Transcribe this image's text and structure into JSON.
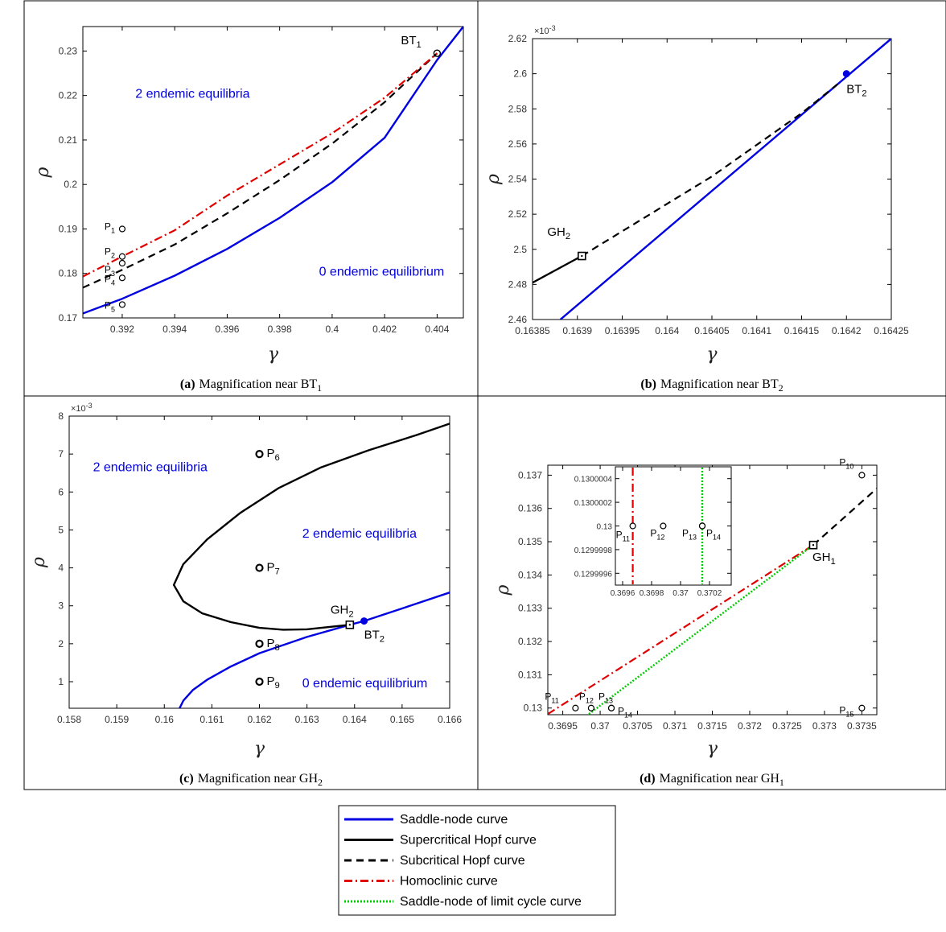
{
  "legend": {
    "items": [
      {
        "label": "Saddle-node curve",
        "color": "#0000e0",
        "style": "solid"
      },
      {
        "label": "Supercritical Hopf curve",
        "color": "#000000",
        "style": "solid"
      },
      {
        "label": "Subcritical Hopf curve",
        "color": "#000000",
        "style": "dashed"
      },
      {
        "label": "Homoclinic curve",
        "color": "#e00000",
        "style": "dashdot"
      },
      {
        "label": "Saddle-node of limit cycle curve",
        "color": "#00cc00",
        "style": "dotted"
      }
    ]
  },
  "chart_data": [
    {
      "id": "a",
      "type": "line",
      "caption_bold": "(a)",
      "caption_text": "Magnification near BT",
      "caption_sub": "1",
      "xlabel": "γ",
      "ylabel": "ρ",
      "xlim": [
        0.3905,
        0.405
      ],
      "ylim": [
        0.17,
        0.2355
      ],
      "xticks": [
        "0.392",
        "0.394",
        "0.396",
        "0.398",
        "0.4",
        "0.402",
        "0.404"
      ],
      "xtick_values": [
        0.392,
        0.394,
        0.396,
        0.398,
        0.4,
        0.402,
        0.404
      ],
      "yticks": [
        "0.17",
        "0.18",
        "0.19",
        "0.2",
        "0.21",
        "0.22",
        "0.23"
      ],
      "ytick_values": [
        0.17,
        0.18,
        0.19,
        0.2,
        0.21,
        0.22,
        0.23
      ],
      "series": [
        {
          "curve": "saddle-node",
          "x": [
            0.3905,
            0.392,
            0.394,
            0.396,
            0.398,
            0.4,
            0.402,
            0.404,
            0.405
          ],
          "y": [
            0.171,
            0.1743,
            0.1795,
            0.1855,
            0.1925,
            0.2005,
            0.2105,
            0.228,
            0.2355
          ]
        },
        {
          "curve": "subcritical-hopf",
          "x": [
            0.3905,
            0.392,
            0.394,
            0.396,
            0.398,
            0.4,
            0.402,
            0.404
          ],
          "y": [
            0.1768,
            0.1808,
            0.1865,
            0.1935,
            0.201,
            0.2092,
            0.2185,
            0.2295
          ]
        },
        {
          "curve": "homoclinic",
          "x": [
            0.3905,
            0.392,
            0.394,
            0.396,
            0.398,
            0.4,
            0.402,
            0.404
          ],
          "y": [
            0.1793,
            0.1838,
            0.1897,
            0.1975,
            0.2045,
            0.2115,
            0.2195,
            0.2295
          ]
        }
      ],
      "points": [
        {
          "label": "P",
          "sub": "1",
          "x": 0.392,
          "y": 0.19
        },
        {
          "label": "P",
          "sub": "2",
          "x": 0.392,
          "y": 0.1838
        },
        {
          "label": "P",
          "sub": "3",
          "x": 0.392,
          "y": 0.1823
        },
        {
          "label": "P",
          "sub": "4",
          "x": 0.392,
          "y": 0.179
        },
        {
          "label": "P",
          "sub": "5",
          "x": 0.392,
          "y": 0.173
        }
      ],
      "special": [
        {
          "label": "BT",
          "sub": "1",
          "x": 0.404,
          "y": 0.2295,
          "marker": "open-circle"
        }
      ],
      "annotations": [
        {
          "text": "2 endemic  equilibria",
          "x": 0.3925,
          "y": 0.2195
        },
        {
          "text": "0 endemic equilibrium",
          "x": 0.3995,
          "y": 0.1795
        }
      ]
    },
    {
      "id": "b",
      "type": "line",
      "caption_bold": "(b)",
      "caption_text": "Magnification near BT",
      "caption_sub": "2",
      "xlabel": "γ",
      "ylabel": "ρ",
      "exponent": "×10",
      "exponent_power": "-3",
      "xlim": [
        0.16385,
        0.16425
      ],
      "ylim": [
        2.46,
        2.62
      ],
      "xticks": [
        "0.16385",
        "0.1639",
        "0.16395",
        "0.164",
        "0.16405",
        "0.1641",
        "0.16415",
        "0.1642",
        "0.16425"
      ],
      "xtick_values": [
        0.16385,
        0.1639,
        0.16395,
        0.164,
        0.16405,
        0.1641,
        0.16415,
        0.1642,
        0.16425
      ],
      "yticks": [
        "2.46",
        "2.48",
        "2.5",
        "2.52",
        "2.54",
        "2.56",
        "2.58",
        "2.6",
        "2.62"
      ],
      "ytick_values": [
        2.46,
        2.48,
        2.5,
        2.52,
        2.54,
        2.56,
        2.58,
        2.6,
        2.62
      ],
      "series": [
        {
          "curve": "saddle-node",
          "x": [
            0.163881,
            0.16425
          ],
          "y": [
            2.46,
            2.62
          ]
        },
        {
          "curve": "supercritical-hopf",
          "x": [
            0.16385,
            0.163905
          ],
          "y": [
            2.481,
            2.4962
          ]
        },
        {
          "curve": "subcritical-hopf",
          "x": [
            0.163905,
            0.16405,
            0.16415,
            0.16419
          ],
          "y": [
            2.4962,
            2.5415,
            2.5775,
            2.594
          ]
        }
      ],
      "points": [],
      "special": [
        {
          "label": "GH",
          "sub": "2",
          "x": 0.163905,
          "y": 2.4962,
          "marker": "square"
        },
        {
          "label": "BT",
          "sub": "2",
          "x": 0.1642,
          "y": 2.6,
          "marker": "filled-circle"
        }
      ],
      "annotations": []
    },
    {
      "id": "c",
      "type": "line",
      "caption_bold": "(c)",
      "caption_text": "Magnification near GH",
      "caption_sub": "2",
      "xlabel": "γ",
      "ylabel": "ρ",
      "exponent": "×10",
      "exponent_power": "-3",
      "xlim": [
        0.158,
        0.166
      ],
      "ylim": [
        0.3,
        8
      ],
      "xticks": [
        "0.158",
        "0.159",
        "0.16",
        "0.161",
        "0.162",
        "0.163",
        "0.164",
        "0.165",
        "0.166"
      ],
      "xtick_values": [
        0.158,
        0.159,
        0.16,
        0.161,
        0.162,
        0.163,
        0.164,
        0.165,
        0.166
      ],
      "yticks": [
        "1",
        "2",
        "3",
        "4",
        "5",
        "6",
        "7",
        "8"
      ],
      "ytick_values": [
        1,
        2,
        3,
        4,
        5,
        6,
        7,
        8
      ],
      "series": [
        {
          "curve": "saddle-node",
          "x": [
            0.16032,
            0.1604,
            0.1606,
            0.1609,
            0.1614,
            0.162,
            0.163,
            0.1639,
            0.1642,
            0.165,
            0.166
          ],
          "y": [
            0.3,
            0.5,
            0.78,
            1.05,
            1.4,
            1.75,
            2.18,
            2.5,
            2.6,
            2.93,
            3.35
          ]
        },
        {
          "curve": "supercritical-hopf",
          "x": [
            0.1639,
            0.163,
            0.1625,
            0.162,
            0.1614,
            0.1608,
            0.1604,
            0.1602,
            0.1604,
            0.1609,
            0.1616,
            0.1624,
            0.1633,
            0.1643,
            0.1653,
            0.166
          ],
          "y": [
            2.5,
            2.38,
            2.37,
            2.42,
            2.57,
            2.8,
            3.12,
            3.55,
            4.1,
            4.75,
            5.45,
            6.1,
            6.65,
            7.1,
            7.5,
            7.8
          ]
        }
      ],
      "points": [
        {
          "label": "P",
          "sub": "6",
          "x": 0.162,
          "y": 7
        },
        {
          "label": "P",
          "sub": "7",
          "x": 0.162,
          "y": 4
        },
        {
          "label": "P",
          "sub": "8",
          "x": 0.162,
          "y": 2
        },
        {
          "label": "P",
          "sub": "9",
          "x": 0.162,
          "y": 1
        }
      ],
      "special": [
        {
          "label": "GH",
          "sub": "2",
          "x": 0.1639,
          "y": 2.5,
          "marker": "square"
        },
        {
          "label": "BT",
          "sub": "2",
          "x": 0.1642,
          "y": 2.6,
          "marker": "filled-circle"
        }
      ],
      "annotations": [
        {
          "text": "2 endemic  equilibria",
          "x": 0.1585,
          "y": 6.55
        },
        {
          "text": "2 endemic  equilibria",
          "x": 0.1629,
          "y": 4.8
        },
        {
          "text": "0 endemic equilibrium",
          "x": 0.1629,
          "y": 0.85
        }
      ]
    },
    {
      "id": "d",
      "type": "line",
      "caption_bold": "(d)",
      "caption_text": "Magnification near GH",
      "caption_sub": "1",
      "xlabel": "γ",
      "ylabel": "ρ",
      "xlim": [
        0.3693,
        0.3737
      ],
      "ylim": [
        0.1298,
        0.1373
      ],
      "xticks": [
        "0.3695",
        "0.37",
        "0.3705",
        "0.371",
        "0.3715",
        "0.372",
        "0.3725",
        "0.373",
        "0.3735"
      ],
      "xtick_values": [
        0.3695,
        0.37,
        0.3705,
        0.371,
        0.3715,
        0.372,
        0.3725,
        0.373,
        0.3735
      ],
      "yticks": [
        "0.13",
        "0.131",
        "0.132",
        "0.133",
        "0.134",
        "0.135",
        "0.136",
        "0.137"
      ],
      "ytick_values": [
        0.13,
        0.131,
        0.132,
        0.133,
        0.134,
        0.135,
        0.136,
        0.137
      ],
      "series": [
        {
          "curve": "homoclinic",
          "x": [
            0.3693,
            0.37285
          ],
          "y": [
            0.12982,
            0.1349
          ]
        },
        {
          "curve": "saddle-node-limit-cycle",
          "x": [
            0.36985,
            0.37285
          ],
          "y": [
            0.12982,
            0.1349
          ]
        },
        {
          "curve": "subcritical-hopf",
          "x": [
            0.37285,
            0.3737
          ],
          "y": [
            0.1349,
            0.1366
          ]
        }
      ],
      "points": [
        {
          "label": "P",
          "sub": "10",
          "x": 0.3735,
          "y": 0.137
        },
        {
          "label": "P",
          "sub": "11",
          "x": 0.36967,
          "y": 0.13
        },
        {
          "label": "P",
          "sub": "12",
          "x": 0.36988,
          "y": 0.13
        },
        {
          "label": "P",
          "sub": "13",
          "x": 0.37015,
          "y": 0.13
        },
        {
          "label": "P",
          "sub": "14",
          "x": 0.37015,
          "y": 0.13
        },
        {
          "label": "P",
          "sub": "15",
          "x": 0.3735,
          "y": 0.13
        }
      ],
      "special": [
        {
          "label": "GH",
          "sub": "1",
          "x": 0.37285,
          "y": 0.1349,
          "marker": "square"
        }
      ],
      "annotations": [],
      "inset": {
        "xlim": [
          0.36955,
          0.37035
        ],
        "ylim": [
          0.1299995,
          0.1300005
        ],
        "xticks": [
          "0.3696",
          "0.3698",
          "0.37",
          "0.3702"
        ],
        "xtick_values": [
          0.3696,
          0.3698,
          0.37,
          0.3702
        ],
        "yticks": [
          "0.1299996",
          "0.1299998",
          "0.13",
          "0.1300002",
          "0.1300004"
        ],
        "ytick_values": [
          0.1299996,
          0.1299998,
          0.13,
          0.1300002,
          0.1300004
        ],
        "vlines": [
          {
            "curve": "homoclinic",
            "x": 0.36967
          },
          {
            "curve": "saddle-node-limit-cycle",
            "x": 0.37015
          }
        ],
        "points": [
          {
            "label": "P",
            "sub": "11",
            "x": 0.36967,
            "y": 0.13
          },
          {
            "label": "P",
            "sub": "12",
            "x": 0.36988,
            "y": 0.13
          },
          {
            "label": "P",
            "sub": "13",
            "x": 0.37015,
            "y": 0.13
          },
          {
            "label": "P",
            "sub": "14",
            "x": 0.37015,
            "y": 0.13
          }
        ]
      }
    }
  ]
}
